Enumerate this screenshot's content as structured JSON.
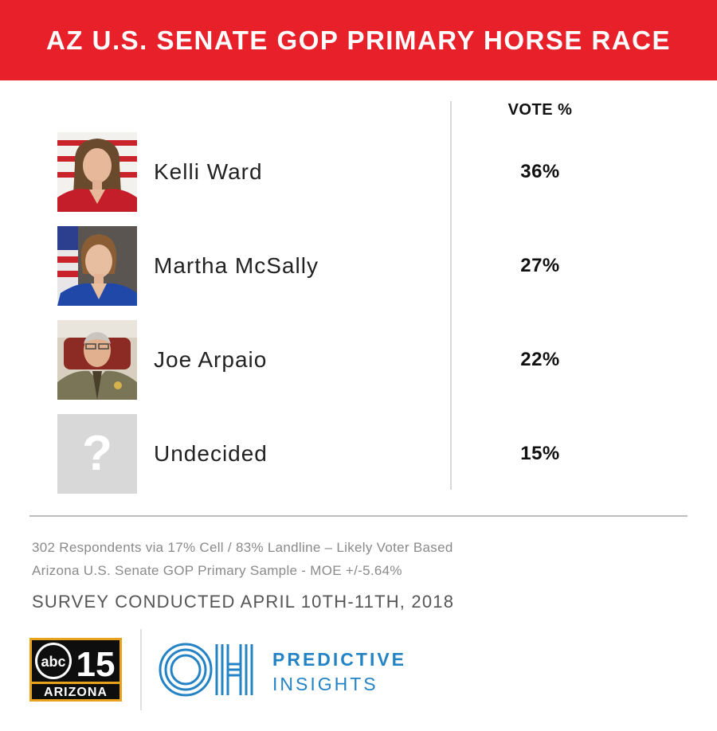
{
  "banner": {
    "title": "AZ U.S. SENATE GOP PRIMARY HORSE RACE"
  },
  "chart_data": {
    "type": "table",
    "title": "AZ U.S. SENATE GOP PRIMARY HORSE RACE",
    "columns": [
      "",
      "VOTE %"
    ],
    "rows": [
      {
        "name": "Kelli Ward",
        "value": 36,
        "label": "36%"
      },
      {
        "name": "Martha McSally",
        "value": 27,
        "label": "27%"
      },
      {
        "name": "Joe Arpaio",
        "value": 22,
        "label": "22%"
      },
      {
        "name": "Undecided",
        "value": 15,
        "label": "15%"
      }
    ]
  },
  "table": {
    "column_header": "VOTE %",
    "rows": [
      {
        "name": "Kelli Ward",
        "pct": "36%"
      },
      {
        "name": "Martha McSally",
        "pct": "27%"
      },
      {
        "name": "Joe Arpaio",
        "pct": "22%"
      },
      {
        "name": "Undecided",
        "pct": "15%",
        "placeholder_glyph": "?"
      }
    ]
  },
  "footer": {
    "note_line1": "302 Respondents via 17% Cell / 83% Landline – Likely Voter Based",
    "note_line2": "Arizona U.S. Senate GOP Primary Sample - MOE +/-5.64%",
    "survey": "SURVEY CONDUCTED APRIL 10TH-11TH, 2018",
    "abc_logo": {
      "abc": "abc",
      "number": "15",
      "region": "ARIZONA"
    },
    "oh_logo": {
      "line1": "PREDICTIVE",
      "line2": "INSIGHTS"
    }
  },
  "colors": {
    "banner": "#e8202a",
    "brand_blue": "#2483c5",
    "gold": "#e8a21c"
  }
}
